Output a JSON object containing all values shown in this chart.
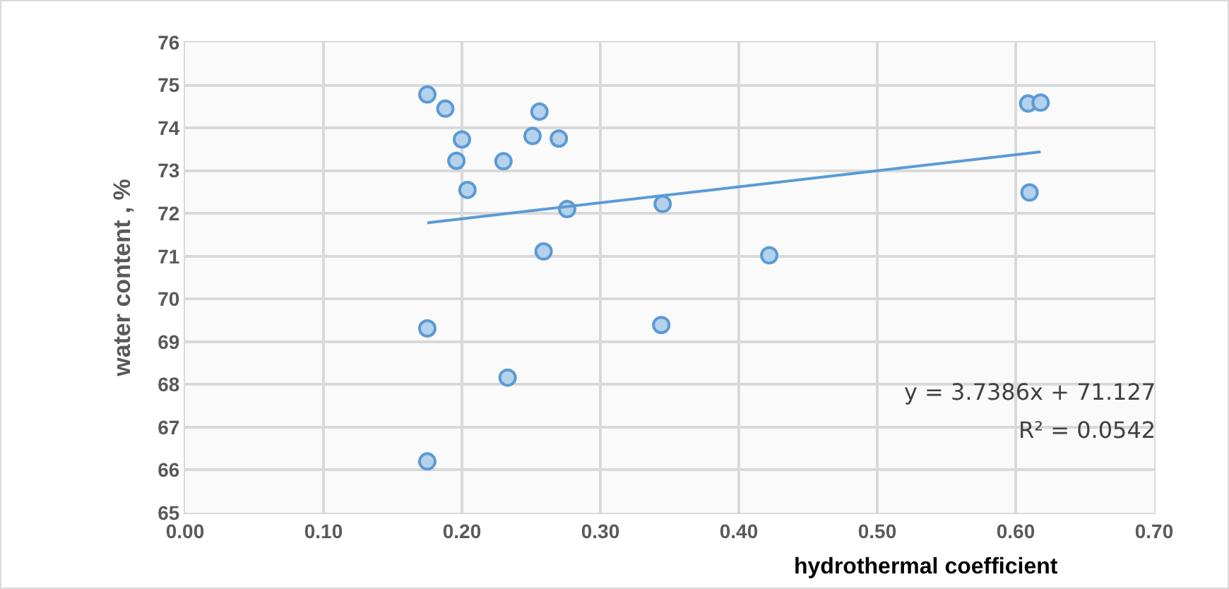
{
  "chart_data": {
    "type": "scatter",
    "xlabel": "hydrothermal coefficient",
    "ylabel": "water content , %",
    "annotations": [
      "y = 3.7386x + 71.127",
      "R² = 0.0542"
    ],
    "series": [
      {
        "color": "#5b9bd5",
        "marker": "circle",
        "x": [
          0.175,
          0.188,
          0.2,
          0.196,
          0.204,
          0.23,
          0.256,
          0.251,
          0.27,
          0.276,
          0.259,
          0.345,
          0.175,
          0.344,
          0.233,
          0.175,
          0.422,
          0.609,
          0.618,
          0.61
        ],
        "values": [
          74.78,
          74.45,
          73.73,
          73.23,
          72.55,
          73.22,
          74.38,
          73.81,
          73.75,
          72.1,
          71.11,
          72.22,
          69.31,
          69.39,
          68.16,
          66.2,
          71.02,
          74.57,
          74.59,
          72.49
        ]
      },
      {
        "type": "line",
        "color": "#5b9bd5",
        "marker": "none",
        "x": [
          0.175,
          0.618
        ],
        "values": [
          71.78,
          73.44
        ]
      }
    ],
    "xlim": [
      0,
      0.7
    ],
    "xticks": [
      {
        "value": 0,
        "label": "0.00"
      },
      {
        "value": 0.1,
        "label": "0.10"
      },
      {
        "value": 0.2,
        "label": "0.20"
      },
      {
        "value": 0.3,
        "label": "0.30"
      },
      {
        "value": 0.4,
        "label": "0.40"
      },
      {
        "value": 0.5,
        "label": "0.50"
      },
      {
        "value": 0.6,
        "label": "0.60"
      },
      {
        "value": 0.7,
        "label": "0.70"
      }
    ],
    "ylim": [
      65,
      76
    ],
    "yticks": [
      65,
      66,
      67,
      68,
      69,
      70,
      71,
      72,
      73,
      74,
      75,
      76
    ],
    "grid": true
  }
}
